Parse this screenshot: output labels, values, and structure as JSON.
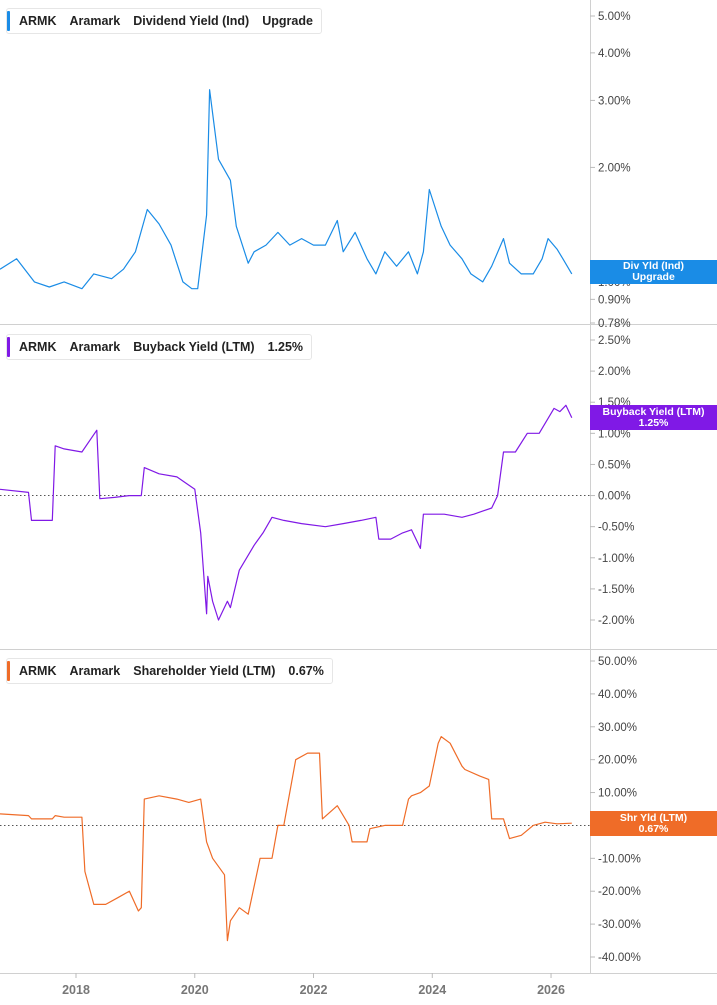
{
  "x_axis": {
    "ticks": [
      "2018",
      "2020",
      "2022",
      "2024",
      "2026"
    ],
    "range": [
      2016.72,
      2026.75
    ]
  },
  "chart_data": [
    {
      "type": "line",
      "ticker": "ARMK",
      "company": "Aramark",
      "metric": "Dividend Yield (Ind)",
      "legend_value": "Upgrade",
      "color": "#1a8ce6",
      "scale": "log",
      "yticks": [
        "5.00%",
        "4.00%",
        "3.00%",
        "2.00%",
        "1.00%",
        "0.90%",
        "0.78%"
      ],
      "tick_values": [
        5.0,
        4.0,
        3.0,
        2.0,
        1.0,
        0.9,
        0.78
      ],
      "ylim": [
        0.78,
        5.5
      ],
      "badge": {
        "line1": "Div Yld (Ind)",
        "line2": "Upgrade"
      },
      "series": [
        {
          "name": "Dividend Yield (Ind)",
          "x": [
            2016.72,
            2017.0,
            2017.3,
            2017.55,
            2017.8,
            2018.1,
            2018.3,
            2018.6,
            2018.8,
            2019.0,
            2019.2,
            2019.4,
            2019.6,
            2019.8,
            2019.95,
            2020.05,
            2020.2,
            2020.25,
            2020.4,
            2020.6,
            2020.7,
            2020.9,
            2021.0,
            2021.2,
            2021.4,
            2021.6,
            2021.8,
            2022.0,
            2022.2,
            2022.4,
            2022.5,
            2022.7,
            2022.9,
            2023.05,
            2023.2,
            2023.4,
            2023.6,
            2023.75,
            2023.85,
            2023.95,
            2024.15,
            2024.3,
            2024.5,
            2024.65,
            2024.85,
            2025.0,
            2025.2,
            2025.3,
            2025.5,
            2025.7,
            2025.85,
            2025.95,
            2026.1,
            2026.2,
            2026.35
          ],
          "values": [
            1.08,
            1.15,
            1.0,
            0.97,
            1.0,
            0.96,
            1.05,
            1.02,
            1.08,
            1.2,
            1.55,
            1.42,
            1.25,
            1.0,
            0.96,
            0.96,
            1.5,
            3.2,
            2.1,
            1.85,
            1.4,
            1.12,
            1.2,
            1.25,
            1.35,
            1.25,
            1.3,
            1.25,
            1.25,
            1.45,
            1.2,
            1.35,
            1.15,
            1.05,
            1.2,
            1.1,
            1.2,
            1.05,
            1.2,
            1.75,
            1.4,
            1.25,
            1.15,
            1.05,
            1.0,
            1.1,
            1.3,
            1.12,
            1.05,
            1.05,
            1.15,
            1.3,
            1.22,
            1.15,
            1.05
          ]
        }
      ]
    },
    {
      "type": "line",
      "ticker": "ARMK",
      "company": "Aramark",
      "metric": "Buyback Yield (LTM)",
      "legend_value": "1.25%",
      "color": "#8019e6",
      "scale": "linear",
      "yticks": [
        "2.50%",
        "2.00%",
        "1.50%",
        "1.00%",
        "0.50%",
        "0.00%",
        "-0.50%",
        "-1.00%",
        "-1.50%",
        "-2.00%"
      ],
      "tick_values": [
        2.5,
        2.0,
        1.5,
        1.0,
        0.5,
        0.0,
        -0.5,
        -1.0,
        -1.5,
        -2.0
      ],
      "ylim": [
        -2.1,
        2.6
      ],
      "zero_line": true,
      "badge": {
        "line1": "Buyback Yield (LTM)",
        "line2": "1.25%"
      },
      "series": [
        {
          "name": "Buyback Yield (LTM)",
          "x": [
            2016.72,
            2017.2,
            2017.25,
            2017.6,
            2017.65,
            2017.8,
            2018.1,
            2018.35,
            2018.4,
            2018.65,
            2018.9,
            2019.1,
            2019.15,
            2019.4,
            2019.7,
            2019.85,
            2020.0,
            2020.1,
            2020.2,
            2020.22,
            2020.3,
            2020.4,
            2020.55,
            2020.6,
            2020.75,
            2021.0,
            2021.15,
            2021.3,
            2021.5,
            2021.8,
            2022.2,
            2022.5,
            2022.8,
            2023.05,
            2023.1,
            2023.3,
            2023.5,
            2023.65,
            2023.8,
            2023.85,
            2024.2,
            2024.5,
            2024.7,
            2024.85,
            2025.0,
            2025.1,
            2025.2,
            2025.4,
            2025.6,
            2025.8,
            2026.05,
            2026.15,
            2026.25,
            2026.35
          ],
          "values": [
            0.1,
            0.05,
            -0.4,
            -0.4,
            0.8,
            0.75,
            0.7,
            1.05,
            -0.05,
            -0.03,
            0.0,
            0.0,
            0.45,
            0.35,
            0.3,
            0.2,
            0.1,
            -0.6,
            -1.9,
            -1.3,
            -1.7,
            -2.0,
            -1.7,
            -1.8,
            -1.2,
            -0.8,
            -0.6,
            -0.35,
            -0.4,
            -0.45,
            -0.5,
            -0.45,
            -0.4,
            -0.35,
            -0.7,
            -0.7,
            -0.6,
            -0.55,
            -0.85,
            -0.3,
            -0.3,
            -0.35,
            -0.3,
            -0.25,
            -0.2,
            0.0,
            0.7,
            0.7,
            1.0,
            1.0,
            1.4,
            1.35,
            1.45,
            1.25
          ]
        }
      ]
    },
    {
      "type": "line",
      "ticker": "ARMK",
      "company": "Aramark",
      "metric": "Shareholder Yield (LTM)",
      "legend_value": "0.67%",
      "color": "#ef6c28",
      "scale": "linear",
      "yticks": [
        "50.00%",
        "40.00%",
        "30.00%",
        "20.00%",
        "10.00%",
        "0.00%",
        "-10.00%",
        "-20.00%",
        "-30.00%",
        "-40.00%"
      ],
      "tick_values": [
        50,
        40,
        30,
        20,
        10,
        0,
        -10,
        -20,
        -30,
        -40
      ],
      "ylim": [
        -42,
        53
      ],
      "zero_line": true,
      "badge": {
        "line1": "Shr Yld (LTM)",
        "line2": "0.67%"
      },
      "series": [
        {
          "name": "Shareholder Yield (LTM)",
          "x": [
            2016.72,
            2017.2,
            2017.25,
            2017.6,
            2017.65,
            2017.8,
            2018.1,
            2018.15,
            2018.3,
            2018.5,
            2018.7,
            2018.9,
            2019.05,
            2019.1,
            2019.15,
            2019.4,
            2019.7,
            2019.9,
            2020.1,
            2020.2,
            2020.3,
            2020.5,
            2020.55,
            2020.6,
            2020.75,
            2020.9,
            2021.1,
            2021.3,
            2021.4,
            2021.5,
            2021.7,
            2021.9,
            2022.1,
            2022.15,
            2022.4,
            2022.6,
            2022.65,
            2022.9,
            2022.95,
            2023.2,
            2023.5,
            2023.6,
            2023.65,
            2023.8,
            2023.95,
            2024.1,
            2024.15,
            2024.3,
            2024.5,
            2024.55,
            2024.8,
            2024.95,
            2025.0,
            2025.2,
            2025.3,
            2025.5,
            2025.7,
            2025.9,
            2026.1,
            2026.35
          ],
          "values": [
            3.5,
            3,
            2,
            2,
            3,
            2.5,
            2.5,
            -14,
            -24,
            -24,
            -22,
            -20,
            -26,
            -25,
            8,
            9,
            8,
            7,
            8,
            -5,
            -10,
            -15,
            -35,
            -29,
            -25,
            -27,
            -10,
            -10,
            0,
            0,
            20,
            22,
            22,
            2,
            6,
            0,
            -5,
            -5,
            -1,
            0,
            0,
            8,
            9,
            10,
            12,
            25,
            27,
            25,
            18,
            17,
            15,
            14,
            2,
            2,
            -4,
            -3,
            0,
            1,
            0.5,
            0.67
          ]
        }
      ]
    }
  ]
}
